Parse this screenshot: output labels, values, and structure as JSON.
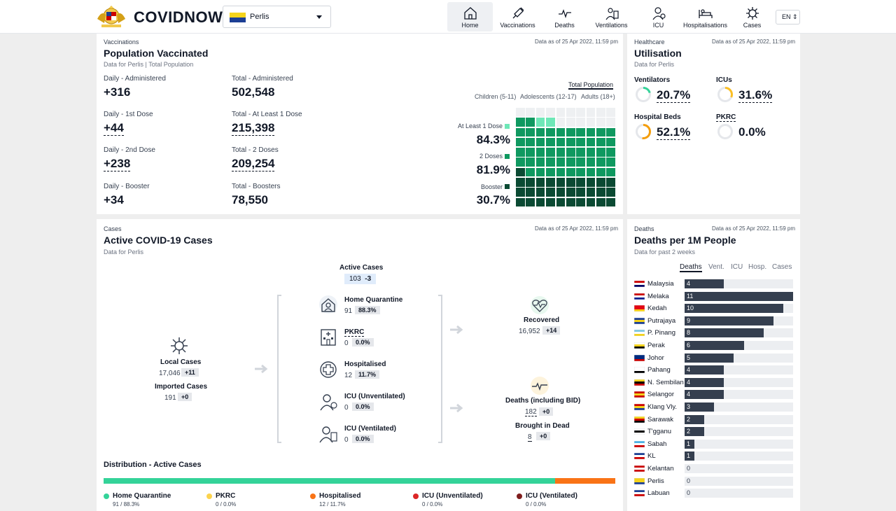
{
  "app": {
    "brand": "COVIDNOW",
    "state": "Perlis",
    "lang": "EN"
  },
  "nav": [
    {
      "label": "Home",
      "icon": "home-icon",
      "active": true
    },
    {
      "label": "Vaccinations",
      "icon": "syringe-icon"
    },
    {
      "label": "Deaths",
      "icon": "pulse-icon"
    },
    {
      "label": "Ventilations",
      "icon": "ventilator-icon"
    },
    {
      "label": "ICU",
      "icon": "icu-icon"
    },
    {
      "label": "Hospitalisations",
      "icon": "bed-icon"
    },
    {
      "label": "Cases",
      "icon": "virus-icon"
    }
  ],
  "vax": {
    "kicker": "Vaccinations",
    "title": "Population Vaccinated",
    "sub_a": "Data for Perlis",
    "sub_b": "Total Population",
    "stamp": "Data as of 25 Apr 2022, 11:59 pm",
    "daily_admin_label": "Daily - Administered",
    "daily_admin": "+316",
    "total_admin_label": "Total - Administered",
    "total_admin": "502,548",
    "daily_d1_label": "Daily - 1st Dose",
    "daily_d1": "+44",
    "total_d1_label": "Total - At Least 1 Dose",
    "total_d1": "215,398",
    "daily_d2_label": "Daily - 2nd Dose",
    "daily_d2": "+238",
    "total_d2_label": "Total - 2 Doses",
    "total_d2": "209,254",
    "daily_b_label": "Daily - Booster",
    "daily_b": "+34",
    "total_b_label": "Total - Boosters",
    "total_b": "78,550",
    "tab_active": "Total Population",
    "tab_children": "Children (5-11)",
    "tab_adolescents": "Adolescents (12-17)",
    "tab_adults": "Adults (18+)",
    "dose1_label": "At Least 1 Dose",
    "dose1_pct": "84.3%",
    "dose1_value": 84.3,
    "dose2_label": "2 Doses",
    "dose2_pct": "81.9%",
    "dose2_value": 81.9,
    "booster_label": "Booster",
    "booster_pct": "30.7%",
    "booster_value": 30.7,
    "colors": {
      "dose1": "#6ee7b7",
      "dose2": "#0f9960",
      "booster": "#0b4a33"
    }
  },
  "util": {
    "kicker": "Healthcare",
    "title": "Utilisation",
    "sub": "Data for Perlis",
    "stamp": "Data as of 25 Apr 2022, 11:59 pm",
    "vent_label": "Ventilators",
    "vent_val": "20.7%",
    "vent": 20.7,
    "icu_label": "ICUs",
    "icu_val": "31.6%",
    "icu": 31.6,
    "beds_label": "Hospital Beds",
    "beds_val": "52.1%",
    "beds": 52.1,
    "pkrc_label": "PKRC",
    "pkrc_val": "0.0%",
    "pkrc": 0.0,
    "colors": {
      "low": "#34d399",
      "mid": "#fbbf24",
      "high": "#f59e0b",
      "track": "#e5e7eb"
    }
  },
  "cases": {
    "kicker": "Cases",
    "title": "Active COVID-19 Cases",
    "sub": "Data for Perlis",
    "stamp": "Data as of 25 Apr 2022, 11:59 pm",
    "active_label": "Active Cases",
    "active_num": "103",
    "active_delta": "-3",
    "local_label": "Local Cases",
    "local_num": "17,046",
    "local_delta": "+11",
    "imported_label": "Imported Cases",
    "imported_num": "191",
    "imported_delta": "+0",
    "hq_label": "Home Quarantine",
    "hq_num": "91",
    "hq_pct": "88.3%",
    "pkrc_label": "PKRC",
    "pkrc_num": "0",
    "pkrc_pct": "0.0%",
    "hosp_label": "Hospitalised",
    "hosp_num": "12",
    "hosp_pct": "11.7%",
    "icuu_label": "ICU (Unventilated)",
    "icuu_num": "0",
    "icuu_pct": "0.0%",
    "icuv_label": "ICU (Ventilated)",
    "icuv_num": "0",
    "icuv_pct": "0.0%",
    "rec_label": "Recovered",
    "rec_num": "16,952",
    "rec_delta": "+14",
    "deaths_label": "Deaths (including BID)",
    "deaths_num": "182",
    "deaths_delta": "+0",
    "bid_label": "Brought in Dead",
    "bid_num": "8",
    "bid_delta": "+0",
    "dist_title": "Distribution - Active Cases",
    "dist": [
      {
        "name": "Home Quarantine",
        "val": "91 / 88.3%",
        "share": 88.3,
        "color": "#34d399"
      },
      {
        "name": "PKRC",
        "val": "0 / 0.0%",
        "share": 0.0,
        "color": "#fcd34d"
      },
      {
        "name": "Hospitalised",
        "val": "12 / 11.7%",
        "share": 11.7,
        "color": "#f97316"
      },
      {
        "name": "ICU (Unventilated)",
        "val": "0 / 0.0%",
        "share": 0.0,
        "color": "#dc2626"
      },
      {
        "name": "ICU (Ventilated)",
        "val": "0 / 0.0%",
        "share": 0.0,
        "color": "#7f1d1d"
      }
    ]
  },
  "deaths": {
    "kicker": "Deaths",
    "title": "Deaths per 1M People",
    "sub": "Data for past 2 weeks",
    "stamp": "Data as of 25 Apr 2022, 11:59 pm",
    "tabs": [
      "Deaths",
      "Vent.",
      "ICU",
      "Hosp.",
      "Cases"
    ],
    "max": 11,
    "states": [
      {
        "name": "Malaysia",
        "value": 4,
        "flag": [
          "#cc0001",
          "#ffffff",
          "#010066"
        ]
      },
      {
        "name": "Melaka",
        "value": 11,
        "flag": [
          "#cc0001",
          "#ffffff",
          "#0a1f8f"
        ]
      },
      {
        "name": "Kedah",
        "value": 10,
        "flag": [
          "#e30613",
          "#e30613",
          "#fcd116"
        ]
      },
      {
        "name": "Putrajaya",
        "value": 9,
        "flag": [
          "#1c3f94",
          "#f4d31b",
          "#1c3f94"
        ]
      },
      {
        "name": "P. Pinang",
        "value": 8,
        "flag": [
          "#7ec8e3",
          "#ffffff",
          "#f4d31b"
        ]
      },
      {
        "name": "Perak",
        "value": 6,
        "flag": [
          "#ffffff",
          "#f4d31b",
          "#000000"
        ]
      },
      {
        "name": "Johor",
        "value": 5,
        "flag": [
          "#002b7f",
          "#002b7f",
          "#cc0000"
        ]
      },
      {
        "name": "Pahang",
        "value": 4,
        "flag": [
          "#ffffff",
          "#ffffff",
          "#000000"
        ]
      },
      {
        "name": "N. Sembilan",
        "value": 4,
        "flag": [
          "#f4d31b",
          "#000000",
          "#cc0000"
        ]
      },
      {
        "name": "Selangor",
        "value": 4,
        "flag": [
          "#cc0000",
          "#f4d31b",
          "#cc0000"
        ]
      },
      {
        "name": "Klang Vly.",
        "value": 3,
        "flag": [
          "#cc0000",
          "#f4d31b",
          "#1c3f94"
        ]
      },
      {
        "name": "Sarawak",
        "value": 2,
        "flag": [
          "#f4d31b",
          "#cc0000",
          "#000000"
        ]
      },
      {
        "name": "T'gganu",
        "value": 2,
        "flag": [
          "#ffffff",
          "#000000",
          "#ffffff"
        ]
      },
      {
        "name": "Sabah",
        "value": 1,
        "flag": [
          "#4cb3e6",
          "#ffffff",
          "#cc0000"
        ]
      },
      {
        "name": "KL",
        "value": 1,
        "flag": [
          "#1c3f94",
          "#ffffff",
          "#cc0000"
        ]
      },
      {
        "name": "Kelantan",
        "value": 0,
        "flag": [
          "#cc0000",
          "#ffffff",
          "#cc0000"
        ]
      },
      {
        "name": "Perlis",
        "value": 0,
        "flag": [
          "#f4d31b",
          "#f4d31b",
          "#1c3f94"
        ]
      },
      {
        "name": "Labuan",
        "value": 0,
        "flag": [
          "#1c3f94",
          "#ffffff",
          "#cc0000"
        ]
      }
    ]
  }
}
